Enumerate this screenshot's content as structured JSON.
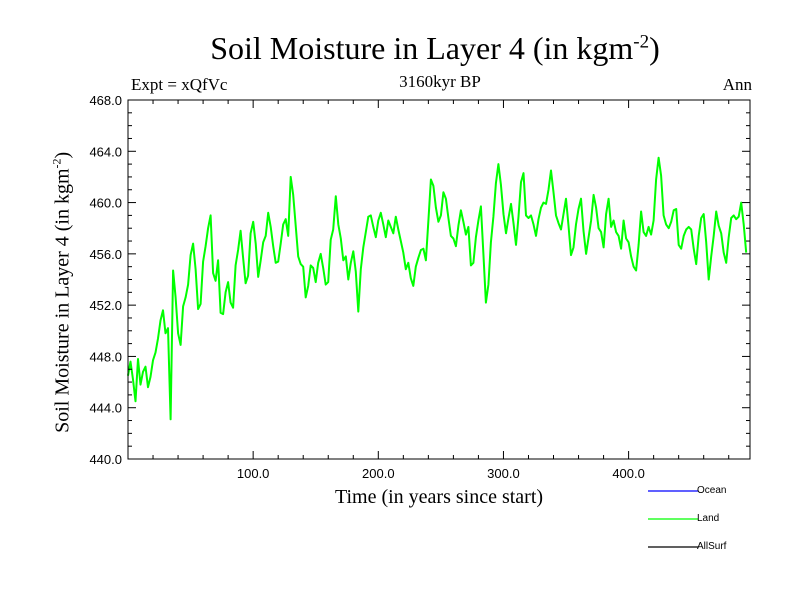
{
  "chart_data": {
    "type": "line",
    "title": "Soil Moisture in Layer 4 (in kgm",
    "title_sup": "-2",
    "title_close": ")",
    "subtitle": "3160kyr BP",
    "left_label": "Expt = xQfVc",
    "right_label": "Ann",
    "xlabel": "Time (in years since start)",
    "ylabel": "Soil Moisture in Layer 4 (in kgm",
    "ylabel_sup": "-2",
    "ylabel_close": ")",
    "xlim": [
      0,
      497
    ],
    "ylim": [
      440,
      468
    ],
    "x_ticks": [
      100,
      200,
      300,
      400
    ],
    "x_tick_labels": [
      "100.0",
      "200.0",
      "300.0",
      "400.0"
    ],
    "y_ticks": [
      440,
      444,
      448,
      452,
      456,
      460,
      464,
      468
    ],
    "y_tick_labels": [
      "440.0",
      "444.0",
      "448.0",
      "452.0",
      "456.0",
      "460.0",
      "464.0",
      "468.0"
    ],
    "series": [
      {
        "name": "Land",
        "color": "#00ff00",
        "x_start": 0,
        "x_step": 2,
        "values": [
          446.5,
          447.6,
          446.2,
          444.5,
          447.8,
          445.8,
          446.8,
          447.2,
          445.6,
          446.4,
          447.7,
          448.3,
          449.4,
          450.8,
          451.6,
          449.8,
          450.2,
          443.1,
          454.7,
          452.6,
          449.8,
          448.9,
          451.9,
          452.6,
          453.6,
          455.9,
          456.8,
          454.8,
          451.7,
          452.1,
          455.4,
          456.6,
          458.0,
          459.0,
          454.5,
          453.9,
          455.5,
          451.4,
          451.3,
          453.0,
          453.8,
          452.2,
          451.8,
          455.1,
          456.3,
          457.8,
          455.7,
          453.7,
          454.3,
          457.6,
          458.5,
          456.8,
          454.2,
          455.5,
          456.9,
          457.4,
          459.2,
          458.1,
          456.6,
          455.3,
          455.4,
          456.8,
          458.3,
          458.7,
          457.4,
          462.0,
          460.6,
          458.2,
          455.8,
          455.2,
          455.0,
          452.6,
          453.5,
          455.1,
          454.9,
          453.8,
          455.3,
          456.0,
          454.9,
          453.6,
          453.8,
          457.1,
          457.9,
          460.5,
          458.3,
          457.2,
          455.5,
          455.8,
          454.0,
          455.3,
          456.2,
          454.6,
          451.5,
          454.8,
          456.5,
          457.7,
          458.9,
          459.0,
          458.1,
          457.3,
          458.6,
          459.2,
          458.3,
          457.3,
          458.6,
          458.1,
          457.6,
          458.9,
          457.9,
          457.0,
          456.1,
          454.8,
          455.3,
          454.1,
          453.5,
          455.0,
          455.7,
          456.3,
          456.4,
          455.5,
          458.6,
          461.8,
          461.3,
          459.6,
          458.5,
          459.0,
          460.8,
          460.3,
          458.8,
          457.4,
          457.2,
          456.6,
          458.2,
          459.4,
          458.5,
          457.5,
          458.1,
          455.1,
          455.3,
          457.3,
          458.6,
          459.7,
          456.0,
          452.2,
          453.6,
          456.9,
          458.9,
          461.5,
          463.0,
          461.4,
          459.1,
          457.6,
          458.8,
          459.9,
          458.4,
          456.7,
          458.9,
          461.6,
          462.3,
          459.0,
          458.8,
          459.0,
          458.3,
          457.4,
          458.7,
          459.6,
          460.0,
          459.9,
          461.0,
          462.5,
          460.8,
          459.0,
          458.4,
          457.9,
          459.1,
          460.3,
          458.2,
          455.9,
          456.5,
          458.3,
          459.5,
          460.3,
          457.8,
          456.0,
          457.3,
          458.6,
          460.6,
          459.6,
          458.0,
          457.7,
          456.5,
          459.1,
          460.3,
          458.1,
          458.6,
          457.7,
          457.4,
          456.4,
          458.6,
          457.2,
          456.9,
          455.8,
          455.0,
          454.7,
          456.7,
          459.3,
          457.7,
          457.4,
          458.1,
          457.5,
          458.6,
          461.8,
          463.5,
          462.1,
          459.0,
          458.3,
          458.0,
          458.5,
          459.4,
          459.5,
          456.7,
          456.4,
          457.4,
          457.9,
          458.1,
          457.9,
          456.4,
          455.2,
          457.4,
          458.8,
          459.1,
          456.9,
          454.0,
          455.8,
          457.4,
          459.3,
          458.2,
          457.6,
          456.1,
          455.3,
          457.3,
          458.8,
          459.0,
          458.7,
          458.9,
          460.0,
          458.3,
          456.1
        ]
      },
      {
        "name": "Ocean",
        "color": "#0000ff",
        "values": []
      },
      {
        "name": "AllSurf",
        "color": "#000000",
        "values": []
      }
    ],
    "legend_position": "bottom-right"
  }
}
